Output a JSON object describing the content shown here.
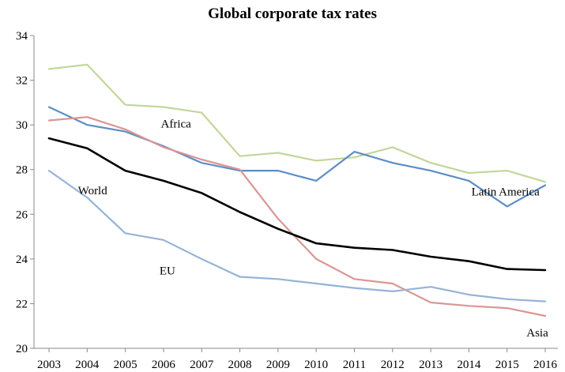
{
  "chart_data": {
    "type": "line",
    "title": "Global corporate tax rates",
    "xlabel": "",
    "ylabel": "",
    "x": [
      "2003",
      "2004",
      "2005",
      "2006",
      "2007",
      "2008",
      "2009",
      "2010",
      "2011",
      "2012",
      "2013",
      "2014",
      "2015",
      "2016"
    ],
    "ylim": [
      20,
      34
    ],
    "yticks": [
      20,
      22,
      24,
      26,
      28,
      30,
      32,
      34
    ],
    "grid": false,
    "legend": "inline labels",
    "series": [
      {
        "name": "Africa",
        "color": "#c3d69b",
        "values": [
          32.5,
          32.7,
          30.9,
          30.8,
          30.55,
          28.6,
          28.75,
          28.4,
          28.55,
          29.0,
          28.3,
          27.85,
          27.95,
          27.45
        ]
      },
      {
        "name": "Latin America",
        "color": "#5b8ec6",
        "values": [
          30.8,
          30.0,
          29.7,
          29.05,
          28.3,
          27.95,
          27.95,
          27.5,
          28.8,
          28.3,
          27.95,
          27.5,
          26.35,
          27.3
        ]
      },
      {
        "name": "Asia",
        "color": "#d99694",
        "values": [
          30.2,
          30.35,
          29.8,
          29.0,
          28.45,
          28.0,
          25.8,
          24.0,
          23.1,
          22.9,
          22.05,
          21.9,
          21.8,
          21.45
        ]
      },
      {
        "name": "World",
        "color": "#000000",
        "values": [
          29.4,
          28.95,
          27.95,
          27.5,
          26.95,
          26.1,
          25.35,
          24.7,
          24.5,
          24.4,
          24.1,
          23.9,
          23.55,
          23.5
        ]
      },
      {
        "name": "EU",
        "color": "#95b3d7",
        "values": [
          27.95,
          26.75,
          25.15,
          24.85,
          24.0,
          23.2,
          23.1,
          22.9,
          22.7,
          22.55,
          22.75,
          22.4,
          22.2,
          22.1
        ]
      }
    ]
  }
}
